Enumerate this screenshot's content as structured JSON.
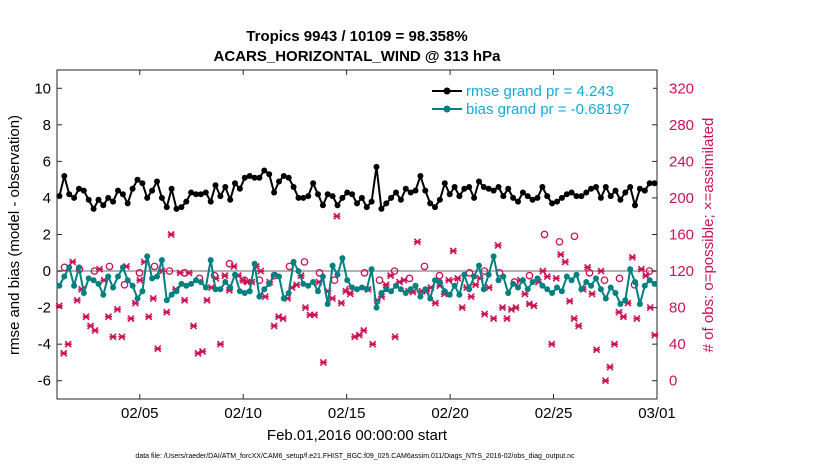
{
  "chart_data": {
    "type": "line",
    "title_line1": "Tropics 9943 / 10109 = 98.358%",
    "title_line2": "ACARS_HORIZONTAL_WIND @ 313 hPa",
    "xlabel": "Feb.01,2016 00:00:00 start",
    "ylabel_left": "rmse and bias (model - observation)",
    "ylabel_right": "# of obs: o=possible; ×=assimilated",
    "x_range_days": [
      0,
      29
    ],
    "xticks": [
      {
        "label": "02/05",
        "day": 4
      },
      {
        "label": "02/10",
        "day": 9
      },
      {
        "label": "02/15",
        "day": 14
      },
      {
        "label": "02/20",
        "day": 19
      },
      {
        "label": "02/25",
        "day": 24
      },
      {
        "label": "03/01",
        "day": 29
      }
    ],
    "ylim_left": [
      -7,
      11
    ],
    "yticks_left": [
      "10",
      "8",
      "6",
      "4",
      "2",
      "0",
      "-2",
      "-4",
      "-6"
    ],
    "ylim_right": [
      -20,
      340
    ],
    "yticks_right": [
      "320",
      "280",
      "240",
      "200",
      "160",
      "120",
      "80",
      "40",
      "0"
    ],
    "legend": {
      "rmse_label": "rmse grand pr = 4.243",
      "bias_label": "bias grand pr = -0.68197"
    },
    "colors": {
      "rmse": "#000000",
      "bias": "#008080",
      "obs": "#cc1155",
      "zero_line": "#b3b3b3",
      "right_axis": "#cc1155"
    },
    "rmse_values": [
      4.1,
      5.2,
      4.2,
      4.0,
      4.5,
      4.4,
      3.9,
      3.4,
      3.9,
      3.6,
      4.0,
      3.8,
      4.4,
      4.2,
      3.7,
      4.5,
      5.0,
      4.8,
      4.0,
      4.4,
      4.9,
      4.0,
      3.5,
      4.5,
      3.4,
      3.5,
      3.8,
      4.3,
      4.2,
      4.2,
      4.3,
      3.8,
      4.7,
      4.1,
      4.6,
      3.9,
      4.8,
      4.5,
      5.1,
      5.2,
      5.1,
      5.1,
      5.5,
      5.3,
      4.3,
      4.9,
      5.2,
      5.1,
      4.6,
      4.0,
      4.0,
      4.1,
      4.8,
      4.2,
      3.6,
      4.2,
      4.1,
      3.6,
      4.0,
      4.3,
      4.2,
      3.7,
      4.0,
      3.5,
      3.8,
      5.7,
      3.4,
      3.7,
      4.0,
      4.3,
      3.9,
      4.5,
      4.3,
      4.4,
      5.2,
      4.4,
      3.7,
      3.5,
      3.9,
      4.8,
      4.2,
      4.6,
      4.1,
      4.5,
      4.6,
      4.0,
      4.9,
      4.6,
      4.5,
      4.4,
      4.6,
      4.1,
      4.5,
      4.0,
      3.8,
      4.3,
      4.1,
      3.9,
      4.0,
      4.6,
      4.1,
      3.7,
      3.8,
      4.0,
      4.2,
      4.3,
      4.1,
      4.1,
      4.3,
      4.5,
      4.6,
      4.0,
      4.6,
      4.1,
      4.4,
      3.9,
      4.3,
      4.6,
      3.6,
      4.5,
      4.4,
      4.8,
      4.8
    ],
    "bias_values": [
      -0.8,
      -0.3,
      0.2,
      -0.8,
      0.2,
      -1.2,
      -0.4,
      -0.5,
      -0.7,
      -1.3,
      -0.3,
      -0.9,
      -0.3,
      0.2,
      -0.5,
      -0.8,
      -1.5,
      -1.1,
      0.8,
      -0.4,
      -0.3,
      0.6,
      -1.6,
      -1.3,
      -1.1,
      -0.7,
      -0.8,
      -0.7,
      -0.5,
      -0.6,
      -0.9,
      0.6,
      -1.0,
      -1.0,
      -0.6,
      -0.9,
      -0.2,
      -1.1,
      -1.2,
      -1.1,
      0.4,
      -1.4,
      -1.0,
      -0.7,
      -0.2,
      -0.3,
      -1.5,
      -1.2,
      0.5,
      0.0,
      -0.7,
      -0.8,
      -0.6,
      -1.1,
      -0.3,
      -1.8,
      0.3,
      -0.2,
      0.7,
      -0.5,
      -0.9,
      -1.0,
      -0.9,
      -1.0,
      0.1,
      -2.0,
      -1.2,
      -1.0,
      -1.1,
      -0.8,
      -1.0,
      -1.2,
      -1.0,
      -0.8,
      -1.4,
      -1.0,
      -1.5,
      -0.5,
      -0.6,
      -1.1,
      -1.3,
      -0.8,
      -1.3,
      -0.2,
      -1.0,
      -0.3,
      0.3,
      -1.0,
      -0.2,
      0.8,
      -0.5,
      -0.3,
      -1.2,
      -0.7,
      -0.9,
      -0.5,
      -1.0,
      -0.6,
      -0.4,
      -0.8,
      -1.0,
      -1.2,
      -0.9,
      -1.1,
      -0.3,
      -0.5,
      -0.2,
      -1.0,
      -0.6,
      -0.8,
      -0.4,
      -1.0,
      -1.5,
      -0.9,
      -1.2,
      -1.8,
      -1.6,
      0.1,
      -0.6,
      -1.8,
      -0.8,
      -0.5,
      -0.7
    ],
    "obs_assimilated": [
      82,
      30,
      40,
      130,
      88,
      100,
      70,
      60,
      55,
      122,
      110,
      70,
      48,
      78,
      48,
      125,
      68,
      85,
      110,
      130,
      70,
      90,
      35,
      120,
      75,
      160,
      100,
      118,
      88,
      118,
      60,
      30,
      32,
      88,
      102,
      112,
      40,
      115,
      99,
      125,
      115,
      110,
      108,
      108,
      125,
      120,
      92,
      108,
      60,
      70,
      68,
      90,
      102,
      105,
      115,
      80,
      72,
      72,
      108,
      20,
      98,
      90,
      180,
      85,
      98,
      95,
      48,
      50,
      55,
      100,
      40,
      88,
      92,
      105,
      115,
      48,
      108,
      110,
      98,
      97,
      152,
      98,
      98,
      102,
      85,
      104,
      95,
      110,
      142,
      112,
      80,
      102,
      92,
      105,
      112,
      73,
      102,
      68,
      148,
      80,
      68,
      78,
      80,
      110,
      95,
      84,
      82,
      108,
      120,
      114,
      40,
      112,
      138,
      130,
      87,
      68,
      60,
      100,
      124,
      95,
      34,
      120,
      0,
      15,
      40,
      75,
      70,
      85,
      135,
      68,
      122,
      115,
      80,
      50
    ],
    "obs_possible": [
      124,
      122,
      120,
      125,
      105,
      118,
      125,
      120,
      118,
      112,
      115,
      128,
      110,
      110,
      115,
      125,
      130,
      118,
      110,
      100,
      118,
      110,
      120,
      112,
      125,
      115,
      108,
      118,
      120,
      118,
      108,
      115,
      160,
      152,
      158,
      118,
      110,
      112,
      105,
      120
    ]
  }
}
